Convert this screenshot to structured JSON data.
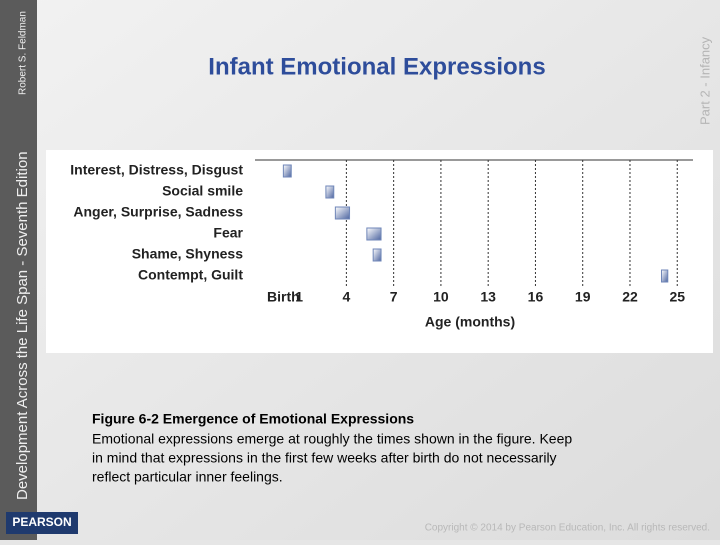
{
  "slide": {
    "title": "Infant Emotional Expressions",
    "side_text": "Development Across the Life Span - Seventh Edition",
    "author": "Robert S. Feldman",
    "part": "Part 2 - Infancy",
    "logo": "PEARSON",
    "caption_title": "Figure 6-2 Emergence of Emotional Expressions",
    "caption_lines": [
      "Emotional expressions emerge at roughly the times shown in the figure. Keep",
      "in mind that expressions in the first few weeks after birth do not necessarily",
      "reflect particular inner feelings."
    ],
    "copyright": "Copyright © 2014 by Pearson Education, Inc. All rights reserved."
  },
  "chart_data": {
    "type": "range_bar",
    "categories": [
      "Interest, Distress, Disgust",
      "Social smile",
      "Anger, Surprise, Sadness",
      "Fear",
      "Shame, Shyness",
      "Contempt, Guilt"
    ],
    "starts": [
      0,
      2.7,
      3.3,
      5.3,
      5.7,
      24
    ],
    "ends": [
      0.5,
      3.2,
      4.2,
      6.2,
      6.2,
      24.4
    ],
    "color": "#6f86b8",
    "xlabel": "Age (months)",
    "xlim": [
      -1.8,
      26
    ],
    "xticks": [
      {
        "value": 0,
        "label": "Birth"
      },
      1,
      4,
      7,
      10,
      13,
      16,
      19,
      22,
      25
    ],
    "grid": true
  }
}
